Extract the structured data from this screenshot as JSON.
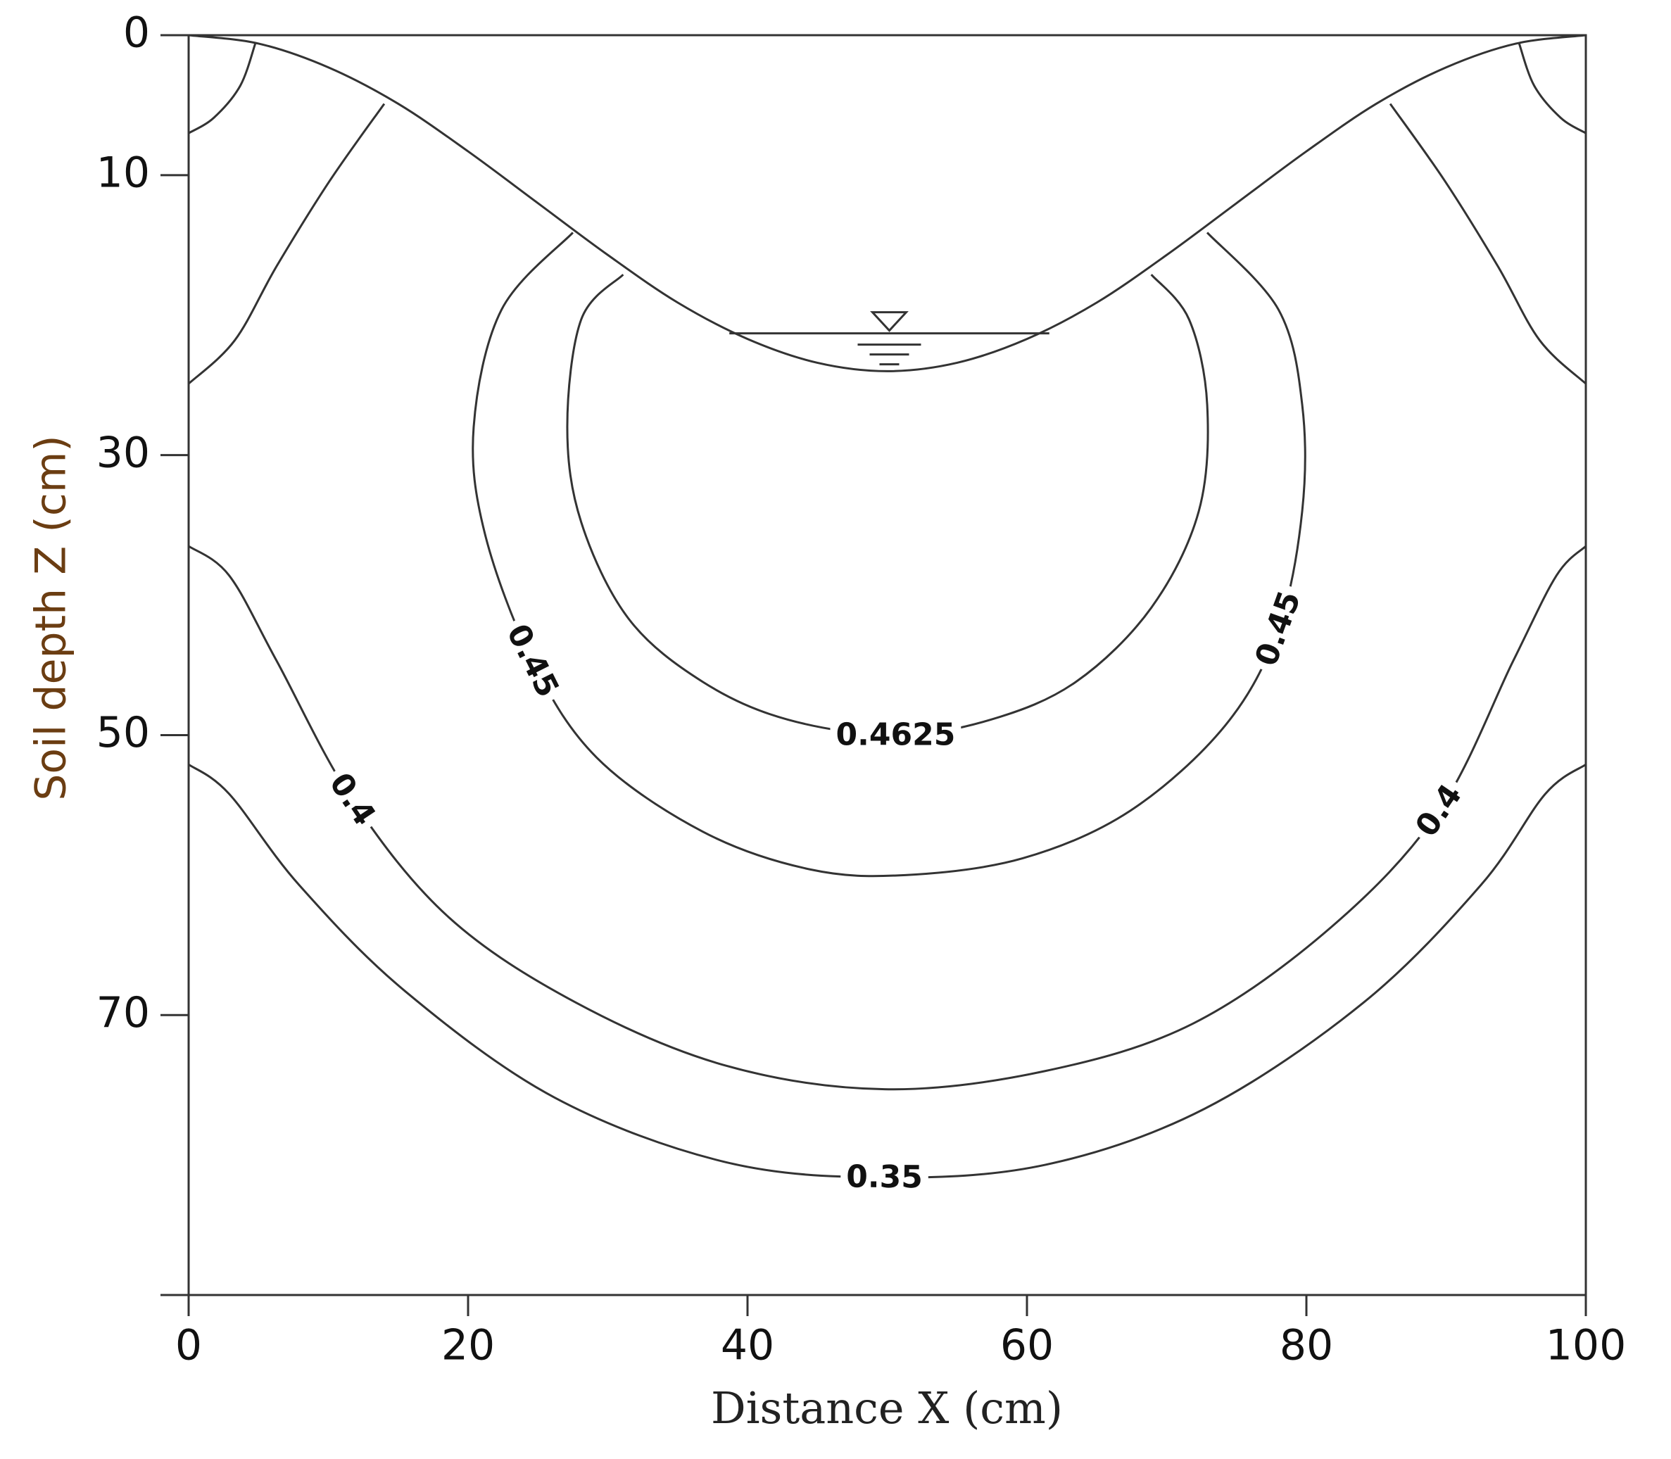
{
  "chart_data": {
    "type": "contour",
    "x_label": "Distance X (cm)",
    "y_label": "Soil depth Z (cm)",
    "xlim": [
      0,
      100
    ],
    "ylim": [
      0,
      90
    ],
    "xticks": [
      0,
      20,
      40,
      60,
      80,
      100
    ],
    "yticks": [
      0,
      10,
      30,
      50,
      70
    ],
    "y_inverted": true,
    "line_color": "#333333",
    "surface": {
      "x": [
        0,
        5,
        10,
        15,
        20,
        25,
        30,
        35,
        40,
        45,
        50,
        55,
        60,
        65,
        70,
        75,
        80,
        85,
        90,
        95,
        100
      ],
      "y": [
        0,
        0.6,
        2.3,
        4.9,
        8.3,
        12,
        15.7,
        19.1,
        21.7,
        23.4,
        24,
        23.4,
        21.7,
        19.1,
        15.7,
        12,
        8.3,
        4.9,
        2.3,
        0.6,
        0
      ]
    },
    "water_level": {
      "x": [
        38.7,
        61.6
      ],
      "y": 21.3
    },
    "contours": [
      {
        "x": [
          4.8,
          3.7,
          1.8,
          0
        ],
        "y": [
          0.5,
          3.6,
          5.9,
          7
        ]
      },
      {
        "x": [
          95.2,
          96.3,
          98.2,
          100
        ],
        "y": [
          0.5,
          3.6,
          5.9,
          7
        ]
      },
      {
        "x": [
          14,
          10.1,
          6.3,
          3.3,
          0
        ],
        "y": [
          4.9,
          10.4,
          16.5,
          21.8,
          24.9
        ]
      },
      {
        "x": [
          86,
          89.9,
          93.7,
          96.7,
          100
        ],
        "y": [
          4.9,
          10.4,
          16.5,
          21.8,
          24.9
        ]
      },
      {
        "level": 0.4625,
        "x": [
          31.1,
          28.1,
          27.1,
          28.1,
          31.5,
          36.8,
          42.9,
          50.6,
          57.4,
          63.5,
          68.9,
          72.3,
          72.9,
          71.6,
          68.9
        ],
        "y": [
          17.1,
          20.3,
          28,
          34.8,
          41.7,
          46.2,
          48.9,
          50,
          48.9,
          46.2,
          40.9,
          34,
          26.4,
          20.3,
          17.1
        ]
      },
      {
        "level": 0.45,
        "x": [
          27.5,
          22.4,
          20.4,
          21.2,
          24.6,
          29.2,
          36.8,
          44.5,
          51.3,
          59.7,
          67.4,
          74.2,
          78,
          79.7,
          79.7,
          78,
          72.9
        ],
        "y": [
          14.1,
          19.6,
          28,
          35.6,
          44.7,
          51.6,
          56.9,
          59.6,
          60,
          58.8,
          55.4,
          49.3,
          42.4,
          34,
          26.4,
          19.6,
          14.1
        ]
      },
      {
        "level": 0.4,
        "x": [
          0,
          2.9,
          6.3,
          11.7,
          18.6,
          27.7,
          38.4,
          49.8,
          61.3,
          71.9,
          81.8,
          89.5,
          94.8,
          97.9,
          100
        ],
        "y": [
          36.5,
          38.6,
          44.7,
          54.6,
          63,
          69.1,
          73.6,
          75.3,
          74,
          70.6,
          63.7,
          55.4,
          44.7,
          38.6,
          36.5
        ]
      },
      {
        "level": 0.35,
        "x": [
          0,
          2.9,
          7.9,
          15.5,
          26.2,
          38.4,
          49.8,
          61.3,
          72.7,
          84.1,
          92.5,
          97.1,
          100
        ],
        "y": [
          52.1,
          54.2,
          60.7,
          68.3,
          75.9,
          80.5,
          81.6,
          80.7,
          76.7,
          69.1,
          60.7,
          54.2,
          52.1
        ]
      }
    ]
  }
}
